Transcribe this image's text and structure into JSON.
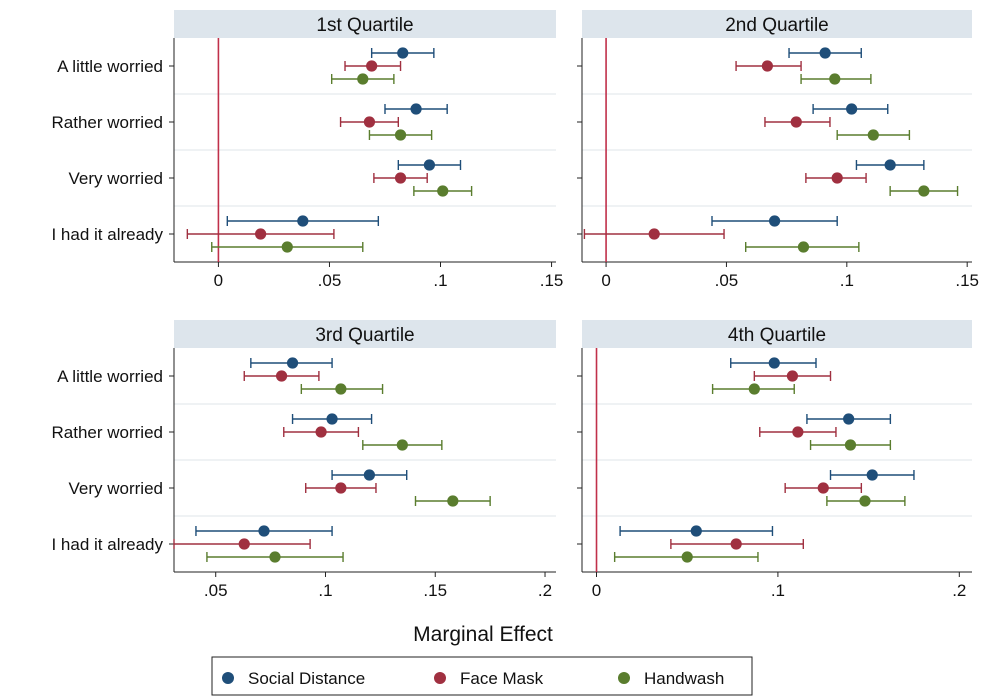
{
  "chart_data": {
    "type": "scatter",
    "subtype": "coefficient-plot-with-confidence-intervals",
    "xlabel": "Marginal Effect",
    "categories": [
      "A little worried",
      "Rather worried",
      "Very worried",
      "I had it already"
    ],
    "legend": {
      "placement": "bottom",
      "entries": [
        {
          "name": "Social Distance",
          "color": "#1f4e79"
        },
        {
          "name": "Face Mask",
          "color": "#a03040"
        },
        {
          "name": "Handwash",
          "color": "#5a7d2e"
        }
      ]
    },
    "reference_line": {
      "x": 0,
      "color": "#c0304a"
    },
    "grid": true,
    "panels": [
      {
        "title": "1st Quartile",
        "xlim": [
          -0.02,
          0.152
        ],
        "xticks": [
          0,
          0.05,
          0.1,
          0.15
        ],
        "xtick_labels": [
          "0",
          ".05",
          ".1",
          ".15"
        ],
        "series": [
          {
            "name": "Social Distance",
            "values": [
              {
                "est": 0.083,
                "lo": 0.069,
                "hi": 0.097
              },
              {
                "est": 0.089,
                "lo": 0.075,
                "hi": 0.103
              },
              {
                "est": 0.095,
                "lo": 0.081,
                "hi": 0.109
              },
              {
                "est": 0.038,
                "lo": 0.004,
                "hi": 0.072
              }
            ]
          },
          {
            "name": "Face Mask",
            "values": [
              {
                "est": 0.069,
                "lo": 0.057,
                "hi": 0.082
              },
              {
                "est": 0.068,
                "lo": 0.055,
                "hi": 0.081
              },
              {
                "est": 0.082,
                "lo": 0.07,
                "hi": 0.094
              },
              {
                "est": 0.019,
                "lo": -0.014,
                "hi": 0.052
              }
            ]
          },
          {
            "name": "Handwash",
            "values": [
              {
                "est": 0.065,
                "lo": 0.051,
                "hi": 0.079
              },
              {
                "est": 0.082,
                "lo": 0.068,
                "hi": 0.096
              },
              {
                "est": 0.101,
                "lo": 0.088,
                "hi": 0.114
              },
              {
                "est": 0.031,
                "lo": -0.003,
                "hi": 0.065
              }
            ]
          }
        ]
      },
      {
        "title": "2nd Quartile",
        "xlim": [
          -0.01,
          0.152
        ],
        "xticks": [
          0,
          0.05,
          0.1,
          0.15
        ],
        "xtick_labels": [
          "0",
          ".05",
          ".1",
          ".15"
        ],
        "series": [
          {
            "name": "Social Distance",
            "values": [
              {
                "est": 0.091,
                "lo": 0.076,
                "hi": 0.106
              },
              {
                "est": 0.102,
                "lo": 0.086,
                "hi": 0.117
              },
              {
                "est": 0.118,
                "lo": 0.104,
                "hi": 0.132
              },
              {
                "est": 0.07,
                "lo": 0.044,
                "hi": 0.096
              }
            ]
          },
          {
            "name": "Face Mask",
            "values": [
              {
                "est": 0.067,
                "lo": 0.054,
                "hi": 0.081
              },
              {
                "est": 0.079,
                "lo": 0.066,
                "hi": 0.093
              },
              {
                "est": 0.096,
                "lo": 0.083,
                "hi": 0.108
              },
              {
                "est": 0.02,
                "lo": -0.009,
                "hi": 0.049
              }
            ]
          },
          {
            "name": "Handwash",
            "values": [
              {
                "est": 0.095,
                "lo": 0.081,
                "hi": 0.11
              },
              {
                "est": 0.111,
                "lo": 0.096,
                "hi": 0.126
              },
              {
                "est": 0.132,
                "lo": 0.118,
                "hi": 0.146
              },
              {
                "est": 0.082,
                "lo": 0.058,
                "hi": 0.105
              }
            ]
          }
        ]
      },
      {
        "title": "3rd Quartile",
        "xlim": [
          0.031,
          0.205
        ],
        "xticks": [
          0.05,
          0.1,
          0.15,
          0.2
        ],
        "xtick_labels": [
          ".05",
          ".1",
          ".15",
          ".2"
        ],
        "series": [
          {
            "name": "Social Distance",
            "values": [
              {
                "est": 0.085,
                "lo": 0.066,
                "hi": 0.103
              },
              {
                "est": 0.103,
                "lo": 0.085,
                "hi": 0.121
              },
              {
                "est": 0.12,
                "lo": 0.103,
                "hi": 0.137
              },
              {
                "est": 0.072,
                "lo": 0.041,
                "hi": 0.103
              }
            ]
          },
          {
            "name": "Face Mask",
            "values": [
              {
                "est": 0.08,
                "lo": 0.063,
                "hi": 0.097
              },
              {
                "est": 0.098,
                "lo": 0.081,
                "hi": 0.115
              },
              {
                "est": 0.107,
                "lo": 0.091,
                "hi": 0.123
              },
              {
                "est": 0.063,
                "lo": 0.031,
                "hi": 0.093
              }
            ]
          },
          {
            "name": "Handwash",
            "values": [
              {
                "est": 0.107,
                "lo": 0.089,
                "hi": 0.126
              },
              {
                "est": 0.135,
                "lo": 0.117,
                "hi": 0.153
              },
              {
                "est": 0.158,
                "lo": 0.141,
                "hi": 0.175
              },
              {
                "est": 0.077,
                "lo": 0.046,
                "hi": 0.108
              }
            ]
          }
        ]
      },
      {
        "title": "4th Quartile",
        "xlim": [
          -0.008,
          0.207
        ],
        "xticks": [
          0,
          0.1,
          0.2
        ],
        "xtick_labels": [
          "0",
          ".1",
          ".2"
        ],
        "series": [
          {
            "name": "Social Distance",
            "values": [
              {
                "est": 0.098,
                "lo": 0.074,
                "hi": 0.121
              },
              {
                "est": 0.139,
                "lo": 0.116,
                "hi": 0.162
              },
              {
                "est": 0.152,
                "lo": 0.129,
                "hi": 0.175
              },
              {
                "est": 0.055,
                "lo": 0.013,
                "hi": 0.097
              }
            ]
          },
          {
            "name": "Face Mask",
            "values": [
              {
                "est": 0.108,
                "lo": 0.087,
                "hi": 0.129
              },
              {
                "est": 0.111,
                "lo": 0.09,
                "hi": 0.132
              },
              {
                "est": 0.125,
                "lo": 0.104,
                "hi": 0.146
              },
              {
                "est": 0.077,
                "lo": 0.041,
                "hi": 0.114
              }
            ]
          },
          {
            "name": "Handwash",
            "values": [
              {
                "est": 0.087,
                "lo": 0.064,
                "hi": 0.109
              },
              {
                "est": 0.14,
                "lo": 0.118,
                "hi": 0.162
              },
              {
                "est": 0.148,
                "lo": 0.127,
                "hi": 0.17
              },
              {
                "est": 0.05,
                "lo": 0.01,
                "hi": 0.089
              }
            ]
          }
        ]
      }
    ]
  }
}
